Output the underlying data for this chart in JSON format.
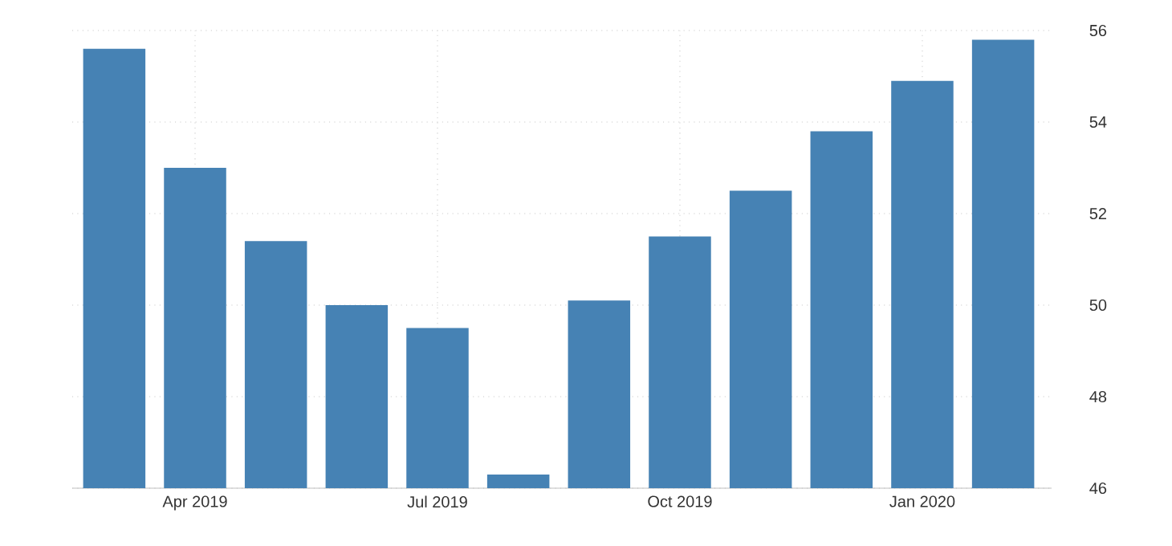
{
  "chart_data": {
    "type": "bar",
    "categories": [
      null,
      "Apr 2019",
      null,
      null,
      "Jul 2019",
      null,
      null,
      "Oct 2019",
      null,
      null,
      "Jan 2020",
      null
    ],
    "values": [
      55.6,
      53.0,
      51.4,
      50.0,
      49.5,
      46.3,
      50.1,
      51.5,
      52.5,
      53.8,
      54.9,
      55.8
    ],
    "color": "#4682b4",
    "ylim": [
      46,
      56
    ],
    "yticks": [
      46,
      48,
      50,
      52,
      54,
      56
    ],
    "grid": true
  }
}
